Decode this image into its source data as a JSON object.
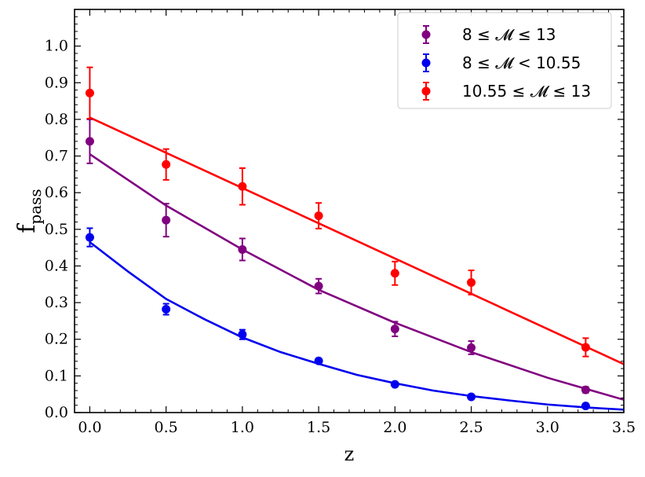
{
  "chart_data": {
    "type": "scatter",
    "xlabel": "z",
    "ylabel_main": "f",
    "ylabel_sub": "pass",
    "xlim": [
      -0.1,
      3.5
    ],
    "ylim": [
      0.0,
      1.1
    ],
    "xticks": [
      0.0,
      0.5,
      1.0,
      1.5,
      2.0,
      2.5,
      3.0,
      3.5
    ],
    "xtick_labels": [
      "0.0",
      "0.5",
      "1.0",
      "1.5",
      "2.0",
      "2.5",
      "3.0",
      "3.5"
    ],
    "yticks": [
      0.0,
      0.1,
      0.2,
      0.3,
      0.4,
      0.5,
      0.6,
      0.7,
      0.8,
      0.9,
      1.0
    ],
    "ytick_labels": [
      "0.0",
      "0.1",
      "0.2",
      "0.3",
      "0.4",
      "0.5",
      "0.6",
      "0.7",
      "0.8",
      "0.9",
      "1.0"
    ],
    "legend_position": "top-right",
    "series": [
      {
        "name": "8 ≤ 𝓜 ≤ 13",
        "color": "#800080",
        "x": [
          0.0,
          0.5,
          1.0,
          1.5,
          2.0,
          2.5,
          3.25
        ],
        "y": [
          0.74,
          0.525,
          0.445,
          0.345,
          0.228,
          0.177,
          0.062
        ],
        "yerr": [
          0.06,
          0.045,
          0.03,
          0.02,
          0.02,
          0.018,
          0.008
        ],
        "fit_x": [
          0.0,
          0.5,
          1.0,
          1.5,
          2.0,
          2.5,
          3.0,
          3.5
        ],
        "fit_y": [
          0.705,
          0.565,
          0.445,
          0.335,
          0.245,
          0.165,
          0.095,
          0.035
        ]
      },
      {
        "name": "8 ≤ 𝓜 < 10.55",
        "color": "#0000ee",
        "x": [
          0.0,
          0.5,
          1.0,
          1.5,
          2.0,
          2.5,
          3.25
        ],
        "y": [
          0.478,
          0.282,
          0.213,
          0.141,
          0.077,
          0.043,
          0.018
        ],
        "yerr": [
          0.025,
          0.015,
          0.013,
          0.006,
          0.005,
          0.004,
          0.003
        ],
        "fit_x": [
          0.0,
          0.25,
          0.5,
          0.75,
          1.0,
          1.25,
          1.5,
          1.75,
          2.0,
          2.25,
          2.5,
          2.75,
          3.0,
          3.25,
          3.5
        ],
        "fit_y": [
          0.465,
          0.385,
          0.31,
          0.255,
          0.205,
          0.165,
          0.133,
          0.103,
          0.08,
          0.06,
          0.045,
          0.033,
          0.022,
          0.014,
          0.008
        ]
      },
      {
        "name": "10.55 ≤ 𝓜 ≤ 13",
        "color": "#ff0000",
        "x": [
          0.0,
          0.5,
          1.0,
          1.5,
          2.0,
          2.5,
          3.25
        ],
        "y": [
          0.872,
          0.677,
          0.617,
          0.537,
          0.38,
          0.355,
          0.178
        ],
        "yerr": [
          0.07,
          0.042,
          0.05,
          0.035,
          0.032,
          0.033,
          0.025
        ],
        "fit_x": [
          0.0,
          3.5
        ],
        "fit_y": [
          0.805,
          0.132
        ]
      }
    ]
  }
}
